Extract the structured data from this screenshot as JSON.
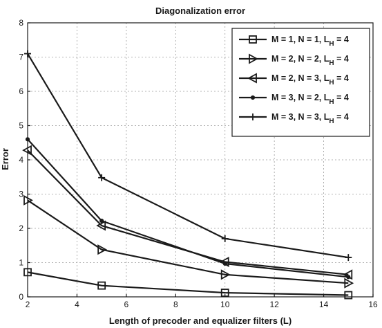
{
  "chart_data": {
    "type": "line",
    "title": "Diagonalization error",
    "xlabel": "Length of precoder and equalizer filters (L)",
    "ylabel": "Error",
    "xlim": [
      2,
      16
    ],
    "ylim": [
      0,
      8
    ],
    "xticks": [
      2,
      4,
      6,
      8,
      10,
      12,
      14,
      16
    ],
    "yticks": [
      0,
      1,
      2,
      3,
      4,
      5,
      6,
      7,
      8
    ],
    "grid": true,
    "legend_position": "top-right",
    "x": [
      2,
      5,
      10,
      15
    ],
    "series": [
      {
        "name": "M = 1, N = 1, L",
        "subscript": "H",
        "suffix": " = 4",
        "marker": "square",
        "values": [
          0.72,
          0.33,
          0.12,
          0.05
        ]
      },
      {
        "name": "M = 2, N = 2, L",
        "subscript": "H",
        "suffix": " = 4",
        "marker": "triangle-right",
        "values": [
          2.82,
          1.38,
          0.65,
          0.4
        ]
      },
      {
        "name": "M = 2, N = 3, L",
        "subscript": "H",
        "suffix": " = 4",
        "marker": "triangle-left",
        "values": [
          4.28,
          2.08,
          1.02,
          0.65
        ]
      },
      {
        "name": "M = 3, N = 2, L",
        "subscript": "H",
        "suffix": " = 4",
        "marker": "point",
        "values": [
          4.6,
          2.22,
          0.97,
          0.58
        ]
      },
      {
        "name": "M = 3, N = 3, L",
        "subscript": "H",
        "suffix": " = 4",
        "marker": "plus",
        "values": [
          7.1,
          3.48,
          1.7,
          1.15
        ]
      }
    ]
  }
}
